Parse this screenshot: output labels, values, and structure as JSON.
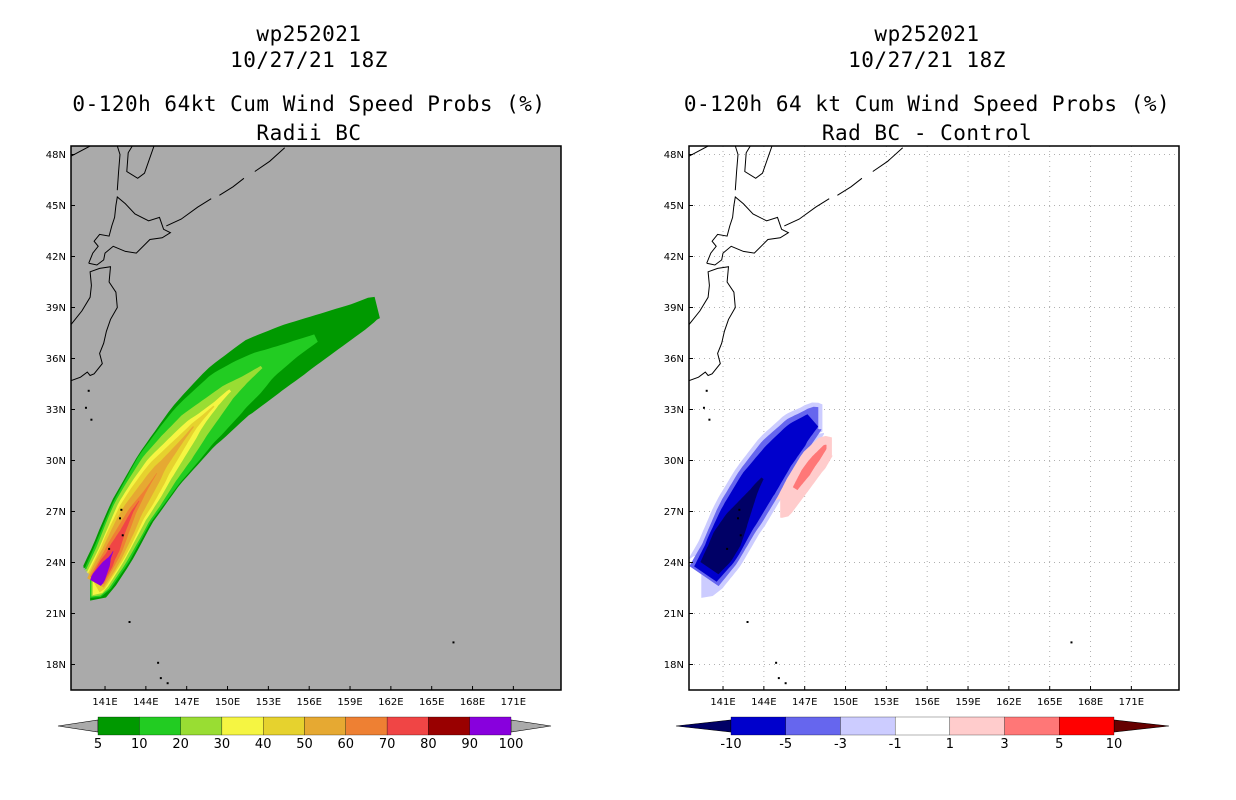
{
  "chart_data": [
    {
      "type": "heatmap",
      "title_lines": [
        "wp252021",
        "10/27/21 18Z",
        "0-120h 64kt Cum Wind Speed Probs (%)",
        "Radii BC"
      ],
      "xlim": [
        138.5,
        174.5
      ],
      "ylim": [
        16.5,
        48.5
      ],
      "x_ticks": [
        "141E",
        "144E",
        "147E",
        "150E",
        "153E",
        "156E",
        "159E",
        "162E",
        "165E",
        "168E",
        "171E"
      ],
      "y_ticks": [
        "18N",
        "21N",
        "24N",
        "27N",
        "30N",
        "33N",
        "36N",
        "39N",
        "42N",
        "45N",
        "48N"
      ],
      "grid": false,
      "background_color": "#aaaaaa",
      "colorbar": {
        "labels": [
          "5",
          "10",
          "20",
          "30",
          "40",
          "50",
          "60",
          "70",
          "80",
          "90",
          "100"
        ],
        "colors": [
          "#009900",
          "#22cc22",
          "#99dd33",
          "#f5f542",
          "#e6d22e",
          "#e6a932",
          "#ee8033",
          "#f04545",
          "#990000",
          "#8800dd"
        ],
        "under_color": "#aaaaaa",
        "over_color": "#aaaaaa"
      },
      "swath_track": [
        [
          140.3,
          22.8
        ],
        [
          141.5,
          24.5
        ],
        [
          143,
          27
        ],
        [
          145,
          29.5
        ],
        [
          147.5,
          32
        ],
        [
          150,
          34
        ],
        [
          152.5,
          35.5
        ],
        [
          155,
          36.6
        ],
        [
          157.5,
          37.6
        ],
        [
          159.5,
          38.4
        ],
        [
          160.8,
          39
        ]
      ],
      "contours": [
        {
          "level": "5",
          "color": "#009900",
          "lon_start": 139.9,
          "lon_end": 161,
          "width_deg": [
            1.3,
            1.6,
            1.8,
            2.0,
            2.2,
            2.3,
            2.3,
            2.0,
            1.6,
            1.2,
            0.8
          ]
        },
        {
          "level": "10",
          "color": "#22cc22",
          "lon_start": 139.9,
          "lon_end": 156.5,
          "width_deg": [
            1.1,
            1.4,
            1.6,
            1.8,
            1.9,
            1.9,
            1.8,
            1.5,
            1.0,
            0.6,
            0.3
          ]
        },
        {
          "level": "20",
          "color": "#99dd33",
          "lon_start": 140.0,
          "lon_end": 152.5,
          "width_deg": [
            1.0,
            1.2,
            1.4,
            1.5,
            1.5,
            1.4,
            1.2,
            0.9,
            0.6,
            0.3,
            0.1
          ]
        },
        {
          "level": "30",
          "color": "#f5f542",
          "lon_start": 140.1,
          "lon_end": 150.2,
          "width_deg": [
            0.9,
            1.0,
            1.1,
            1.2,
            1.2,
            1.1,
            0.9,
            0.7,
            0.4,
            0.2,
            0.1
          ]
        },
        {
          "level": "40",
          "color": "#e6d22e",
          "lon_start": 140.2,
          "lon_end": 149.0,
          "width_deg": [
            0.8,
            0.9,
            1.0,
            1.0,
            1.0,
            0.9,
            0.7,
            0.5,
            0.3,
            0.15,
            0.05
          ]
        },
        {
          "level": "50",
          "color": "#e6a932",
          "lon_start": 140.3,
          "lon_end": 147.5,
          "width_deg": [
            0.7,
            0.8,
            0.8,
            0.8,
            0.7,
            0.6,
            0.5,
            0.3,
            0.2,
            0.1,
            0.05
          ]
        },
        {
          "level": "60",
          "color": "#ee8033",
          "lon_start": 140.4,
          "lon_end": 144.8,
          "width_deg": [
            0.6,
            0.6,
            0.6,
            0.6,
            0.5,
            0.4,
            0.3,
            0.2,
            0.1,
            0.05,
            0.02
          ]
        },
        {
          "level": "70",
          "color": "#f04545",
          "lon_start": 140.5,
          "lon_end": 143.5,
          "width_deg": [
            0.5,
            0.5,
            0.5,
            0.4,
            0.4,
            0.3,
            0.2,
            0.15,
            0.1,
            0.05,
            0.02
          ]
        },
        {
          "level": "90",
          "color": "#8800dd",
          "lon_start": 140.3,
          "lon_end": 141.6,
          "width_deg": [
            0.45,
            0.5,
            0.5,
            0.45,
            0.4,
            0.35,
            0.3,
            0.2,
            0.1,
            0.05,
            0.02
          ]
        }
      ]
    },
    {
      "type": "heatmap",
      "title_lines": [
        "wp252021",
        "10/27/21 18Z",
        "0-120h 64 kt Cum Wind Speed Probs (%)",
        "Rad BC - Control"
      ],
      "xlim": [
        138.5,
        174.5
      ],
      "ylim": [
        16.5,
        48.5
      ],
      "x_ticks": [
        "141E",
        "144E",
        "147E",
        "150E",
        "153E",
        "156E",
        "159E",
        "162E",
        "165E",
        "168E",
        "171E"
      ],
      "y_ticks": [
        "18N",
        "21N",
        "24N",
        "27N",
        "30N",
        "33N",
        "36N",
        "39N",
        "42N",
        "45N",
        "48N"
      ],
      "grid": true,
      "background_color": "#ffffff",
      "colorbar": {
        "labels": [
          "-10",
          "-5",
          "-3",
          "-1",
          "1",
          "3",
          "5",
          "10"
        ],
        "colors": [
          "#0000cc",
          "#6666ee",
          "#ccccff",
          "#ffffff",
          "#ffcccc",
          "#ff7777",
          "#ff0000"
        ],
        "under_color": "#000066",
        "over_color": "#660000"
      },
      "negative_track": [
        [
          139.6,
          23.2
        ],
        [
          140.8,
          24.6
        ],
        [
          142,
          26.5
        ],
        [
          143.5,
          28.5
        ],
        [
          145,
          30.2
        ],
        [
          146.5,
          31.6
        ],
        [
          147.8,
          32.5
        ]
      ],
      "negative_contours": [
        {
          "level": "-1",
          "color": "#ccccff",
          "lon_start": 139.4,
          "lon_end": 148.3,
          "width_deg": [
            1.6,
            1.8,
            2.0,
            2.0,
            1.9,
            1.6,
            1.0
          ]
        },
        {
          "level": "-3",
          "color": "#6666ee",
          "lon_start": 139.6,
          "lon_end": 148.0,
          "width_deg": [
            1.3,
            1.5,
            1.7,
            1.7,
            1.6,
            1.3,
            0.8
          ]
        },
        {
          "level": "-5",
          "color": "#0000cc",
          "lon_start": 139.7,
          "lon_end": 147.6,
          "width_deg": [
            1.0,
            1.3,
            1.4,
            1.4,
            1.2,
            1.0,
            0.6
          ]
        },
        {
          "level": "-10",
          "color": "#000066",
          "lon_start": 140.0,
          "lon_end": 143.9,
          "width_deg": [
            0.8,
            1.0,
            1.1,
            0.9,
            0.6,
            0.3,
            0.1
          ]
        }
      ],
      "positive_track": [
        [
          145.4,
          27.2
        ],
        [
          146.5,
          28.6
        ],
        [
          147.5,
          29.8
        ],
        [
          148.5,
          30.8
        ]
      ],
      "positive_contours": [
        {
          "level": "1",
          "color": "#ffcccc",
          "lon_start": 145.2,
          "lon_end": 149.0,
          "width_deg": [
            0.7,
            0.9,
            1.0,
            0.7
          ]
        },
        {
          "level": "3",
          "color": "#ff7777",
          "lon_start": 146.3,
          "lon_end": 148.6,
          "width_deg": [
            0.2,
            0.35,
            0.3,
            0.15
          ]
        }
      ]
    }
  ]
}
